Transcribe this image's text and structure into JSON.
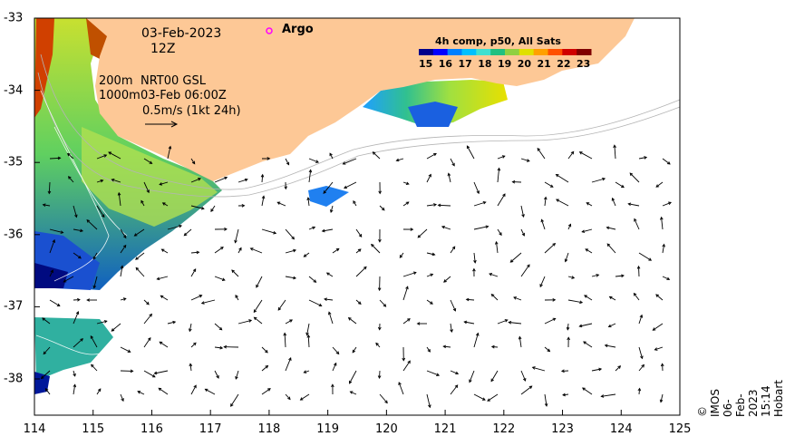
{
  "map": {
    "date": "03-Feb-2023",
    "time": "12Z",
    "legend_argo": "Argo",
    "depth_200": "200m",
    "depth_1000": "1000m",
    "nrt": "NRT00 GSL",
    "nrt_time": "03-Feb 06:00Z",
    "scale": "0.5m/s (1kt 24h)",
    "colorbar_title": "4h comp, p50, All Sats",
    "colorbar_ticks": [
      "15",
      "16",
      "17",
      "18",
      "19",
      "20",
      "21",
      "22",
      "23"
    ],
    "colorbar_colors": [
      "#00008b",
      "#0000ff",
      "#0080ff",
      "#00c0ff",
      "#40e0d0",
      "#20c080",
      "#90d040",
      "#e0e000",
      "#ffa000",
      "#ff5000",
      "#d00000",
      "#800000"
    ],
    "credit": "© IMOS 06-Feb-2023 15:14 Hobart",
    "x_ticks": [
      "114",
      "115",
      "116",
      "117",
      "118",
      "119",
      "120",
      "121",
      "122",
      "123",
      "124",
      "125"
    ],
    "y_ticks": [
      "-33",
      "-34",
      "-35",
      "-36",
      "-37",
      "-38"
    ],
    "land_color": "#fdc896",
    "argo_color": "#ff00ff"
  }
}
